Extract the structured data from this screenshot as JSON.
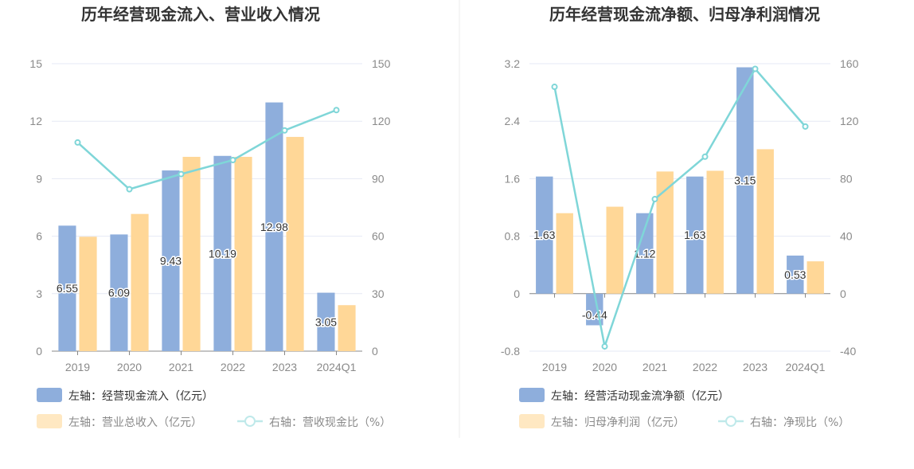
{
  "colors": {
    "blue": "#8eaedc",
    "orange": "#ffd797",
    "line": "#7fd6d8",
    "grid": "#e6e9f4",
    "axis": "#888"
  },
  "chart_data": [
    {
      "type": "bar",
      "title": "历年经营现金流入、营业收入情况",
      "categories": [
        "2019",
        "2020",
        "2021",
        "2022",
        "2023",
        "2024Q1"
      ],
      "left_axis": {
        "ylim": [
          0,
          15
        ],
        "ticks": [
          "0",
          "3",
          "6",
          "9",
          "12",
          "15"
        ]
      },
      "right_axis": {
        "ylim": [
          0,
          150
        ],
        "ticks": [
          "0",
          "30",
          "60",
          "90",
          "120",
          "150"
        ]
      },
      "series": [
        {
          "name": "左轴：经营现金流入（亿元）",
          "type": "bar",
          "axis": "left",
          "values": [
            6.55,
            6.09,
            9.43,
            10.19,
            12.98,
            3.05
          ],
          "labels": [
            "6.55",
            "6.09",
            "9.43",
            "10.19",
            "12.98",
            "3.05"
          ]
        },
        {
          "name": "左轴：营业总收入（亿元）",
          "type": "bar",
          "axis": "left",
          "values": [
            5.97,
            7.16,
            10.14,
            10.14,
            11.18,
            2.4
          ]
        },
        {
          "name": "右轴：营收现金比（%）",
          "type": "line",
          "axis": "right",
          "values": [
            108.9,
            84.5,
            92.4,
            99.7,
            115.2,
            125.8
          ]
        }
      ],
      "grid": true,
      "legend": "bottom-left"
    },
    {
      "type": "bar",
      "title": "历年经营现金流净额、归母净利润情况",
      "categories": [
        "2019",
        "2020",
        "2021",
        "2022",
        "2023",
        "2024Q1"
      ],
      "left_axis": {
        "ylim": [
          -0.8,
          3.2
        ],
        "ticks": [
          "-0.8",
          "0",
          "0.8",
          "1.6",
          "2.4",
          "3.2"
        ]
      },
      "right_axis": {
        "ylim": [
          -40,
          160
        ],
        "ticks": [
          "-40",
          "0",
          "40",
          "80",
          "120",
          "160"
        ]
      },
      "series": [
        {
          "name": "左轴：经营活动现金流净额（亿元）",
          "type": "bar",
          "axis": "left",
          "values": [
            1.63,
            -0.44,
            1.12,
            1.63,
            3.15,
            0.53
          ],
          "labels": [
            "1.63",
            "-0.44",
            "1.12",
            "1.63",
            "3.15",
            "0.53"
          ]
        },
        {
          "name": "左轴：归母净利润（亿元）",
          "type": "bar",
          "axis": "left",
          "values": [
            1.12,
            1.21,
            1.7,
            1.71,
            2.01,
            0.45
          ]
        },
        {
          "name": "右轴：净现比（%）",
          "type": "line",
          "axis": "right",
          "values": [
            143.9,
            -36.7,
            65.8,
            95.3,
            156.4,
            116.3
          ]
        }
      ],
      "grid": true,
      "legend": "bottom-left"
    }
  ]
}
